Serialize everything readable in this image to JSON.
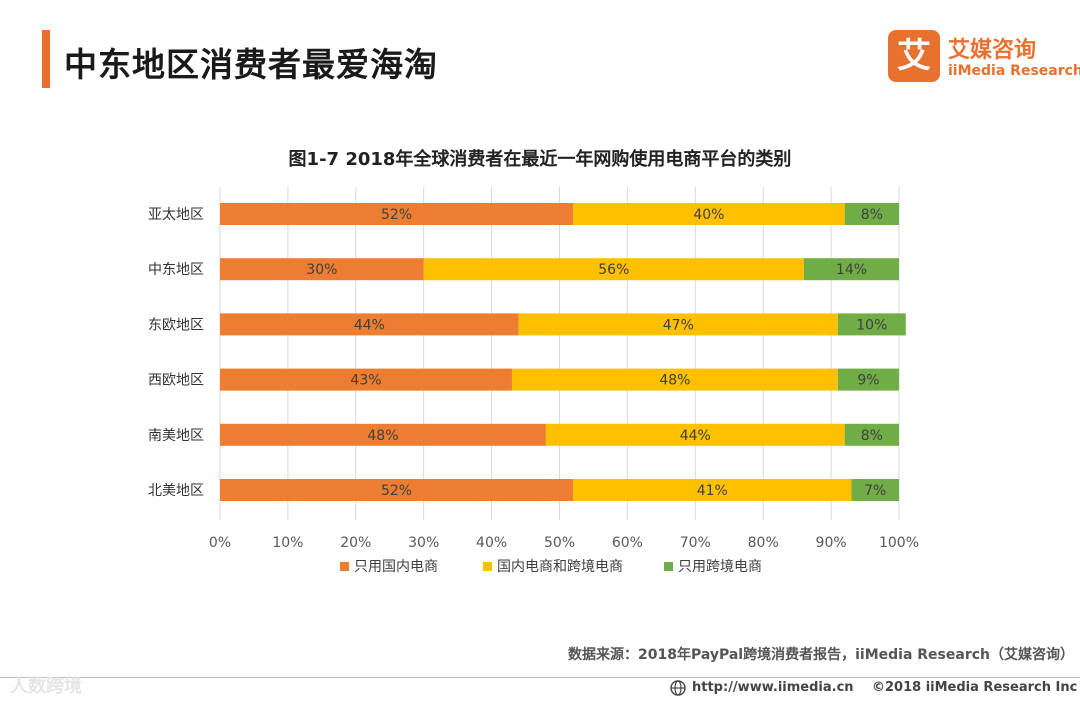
{
  "header": {
    "title": "中东地区消费者最爱海淘"
  },
  "logo": {
    "mark": "艾",
    "name": "艾媒咨询",
    "english": "iiMedia Research"
  },
  "colors": {
    "accent": "#e9712f",
    "orange": "#ed7d31",
    "yellow": "#ffc000",
    "green": "#70ad47",
    "grid": "#d9d9d9",
    "axis_text": "#595959"
  },
  "chart_data": {
    "type": "bar",
    "orientation": "horizontal",
    "stacked": true,
    "percent_stacked": true,
    "title": "图1-7  2018年全球消费者在最近一年网购使用电商平台的类别",
    "categories": [
      "亚太地区",
      "中东地区",
      "东欧地区",
      "西欧地区",
      "南美地区",
      "北美地区"
    ],
    "series": [
      {
        "name": "只用国内电商",
        "color": "#ed7d31",
        "values": [
          52,
          30,
          44,
          43,
          48,
          52
        ]
      },
      {
        "name": "国内电商和跨境电商",
        "color": "#ffc000",
        "values": [
          40,
          56,
          47,
          48,
          44,
          41
        ]
      },
      {
        "name": "只用跨境电商",
        "color": "#70ad47",
        "values": [
          8,
          14,
          10,
          9,
          8,
          7
        ]
      }
    ],
    "xticks": [
      "0%",
      "10%",
      "20%",
      "30%",
      "40%",
      "50%",
      "60%",
      "70%",
      "80%",
      "90%",
      "100%"
    ],
    "xlim": [
      0,
      100
    ],
    "grid": true,
    "legend_position": "bottom",
    "value_suffix": "%"
  },
  "footer": {
    "source": "数据来源：2018年PayPal跨境消费者报告，iiMedia Research（艾媒咨询）",
    "watermark": "人数跨境",
    "url": "http://www.iimedia.cn",
    "copyright": "©2018  iiMedia Research Inc"
  }
}
